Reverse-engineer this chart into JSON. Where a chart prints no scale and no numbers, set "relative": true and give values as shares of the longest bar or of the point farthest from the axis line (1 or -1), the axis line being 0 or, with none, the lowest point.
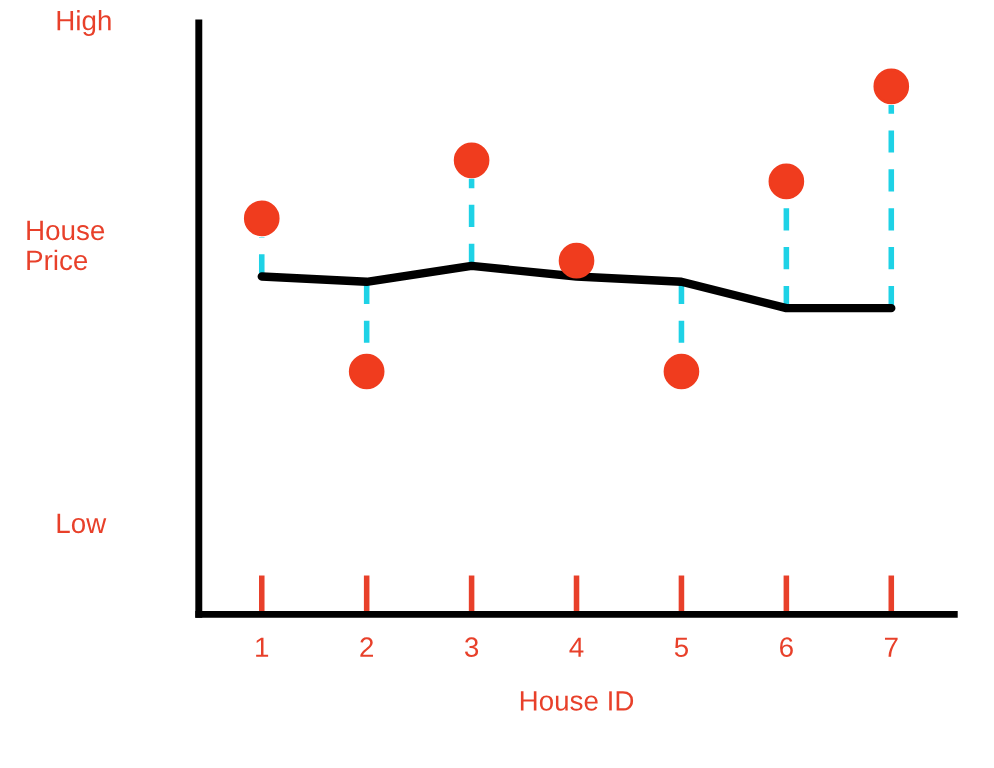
{
  "chart_data": {
    "type": "scatter",
    "relative": true,
    "xlabel": "House ID",
    "ylabel": "House\nPrice",
    "categories": [
      "1",
      "2",
      "3",
      "4",
      "5",
      "6",
      "7"
    ],
    "annotations": [
      "High",
      "Low"
    ],
    "grid": false,
    "legend": false,
    "series": [
      {
        "color": "#f03c1e",
        "marker": "circle",
        "values": [
          0.75,
          0.46,
          0.86,
          0.67,
          0.46,
          0.82,
          1.0
        ]
      },
      {
        "type": "line",
        "color": "#000000",
        "marker": "none",
        "values": [
          0.64,
          0.63,
          0.66,
          0.64,
          0.63,
          0.58,
          0.58
        ]
      }
    ]
  }
}
